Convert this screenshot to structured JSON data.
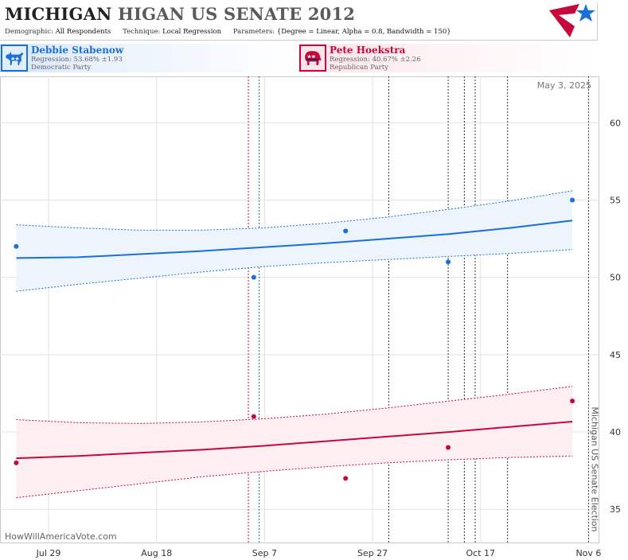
{
  "header": {
    "title_bold": "MICHIGAN",
    "title_rest": "HIGAN US SENATE 2012",
    "meta": [
      {
        "label": "Demographic:",
        "value": "All Respondents"
      },
      {
        "label": "Technique:",
        "value": "Local Regression"
      },
      {
        "label": "Parameters:",
        "value": "{Degree = Linear, Alpha = 0.8, Bandwidth = 150}"
      }
    ],
    "logo_icon": "star-flag-logo-icon"
  },
  "candidates": [
    {
      "id": "dem",
      "name": "Debbie Stabenow",
      "regression": "Regression: 53.68% ±1.93",
      "party": "Democratic Party",
      "icon": "donkey-icon",
      "color": "#1a6fd8"
    },
    {
      "id": "rep",
      "name": "Pete Hoekstra",
      "regression": "Regression: 40.67% ±2.26",
      "party": "Republican Party",
      "icon": "elephant-icon",
      "color": "#c6093b"
    }
  ],
  "chart_data": {
    "type": "line",
    "date_stamp": "May 3, 2025",
    "watermark": "HowWillAmericaVote.com",
    "election_label": "Michigan US Senate Election",
    "election_date": "2012-11-06",
    "x_range": [
      "2012-07-20",
      "2012-11-08"
    ],
    "ylim": [
      32.8,
      63
    ],
    "y_ticks": [
      35,
      40,
      45,
      50,
      55,
      60
    ],
    "x_ticks": [
      {
        "date": "2012-07-29",
        "label": "Jul 29"
      },
      {
        "date": "2012-08-18",
        "label": "Aug 18"
      },
      {
        "date": "2012-09-07",
        "label": "Sep 7"
      },
      {
        "date": "2012-09-27",
        "label": "Sep 27"
      },
      {
        "date": "2012-10-17",
        "label": "Oct 17"
      },
      {
        "date": "2012-11-06",
        "label": "Nov 6"
      }
    ],
    "event_lines": [
      {
        "date": "2012-09-04",
        "color": "#c6093b"
      },
      {
        "date": "2012-09-06",
        "color": "#1a6fd8"
      },
      {
        "date": "2012-09-30",
        "color": "#333333"
      },
      {
        "date": "2012-10-11",
        "color": "#333333"
      },
      {
        "date": "2012-10-14",
        "color": "#333333"
      },
      {
        "date": "2012-10-16",
        "color": "#333333"
      },
      {
        "date": "2012-10-22",
        "color": "#333333"
      }
    ],
    "series": [
      {
        "name": "Debbie Stabenow",
        "color": "#1a6fd8",
        "fill": "#eef4fc",
        "points": [
          {
            "date": "2012-07-23",
            "value": 52
          },
          {
            "date": "2012-09-05",
            "value": 50
          },
          {
            "date": "2012-09-22",
            "value": 53
          },
          {
            "date": "2012-10-11",
            "value": 51
          },
          {
            "date": "2012-11-03",
            "value": 55
          }
        ],
        "trend": {
          "start": "2012-07-23",
          "end": "2012-11-03",
          "values": [
            51.25,
            51.3,
            51.5,
            51.7,
            51.95,
            52.2,
            52.5,
            52.8,
            53.2,
            53.68
          ],
          "upper": [
            53.4,
            53.2,
            53.05,
            53.05,
            53.2,
            53.5,
            53.9,
            54.4,
            54.95,
            55.6
          ],
          "lower": [
            49.1,
            49.55,
            49.95,
            50.35,
            50.7,
            50.95,
            51.15,
            51.35,
            51.55,
            51.8
          ]
        }
      },
      {
        "name": "Pete Hoekstra",
        "color": "#c6093b",
        "fill": "#fdeef1",
        "points": [
          {
            "date": "2012-07-23",
            "value": 38
          },
          {
            "date": "2012-09-05",
            "value": 41
          },
          {
            "date": "2012-09-22",
            "value": 37
          },
          {
            "date": "2012-10-11",
            "value": 39
          },
          {
            "date": "2012-11-03",
            "value": 42
          }
        ],
        "trend": {
          "start": "2012-07-23",
          "end": "2012-11-03",
          "values": [
            38.3,
            38.45,
            38.65,
            38.85,
            39.1,
            39.4,
            39.7,
            40.0,
            40.33,
            40.67
          ],
          "upper": [
            40.8,
            40.6,
            40.55,
            40.65,
            40.85,
            41.15,
            41.55,
            42.0,
            42.45,
            42.95
          ],
          "lower": [
            35.75,
            36.2,
            36.65,
            37.1,
            37.45,
            37.75,
            38.0,
            38.2,
            38.35,
            38.45
          ]
        }
      }
    ]
  }
}
